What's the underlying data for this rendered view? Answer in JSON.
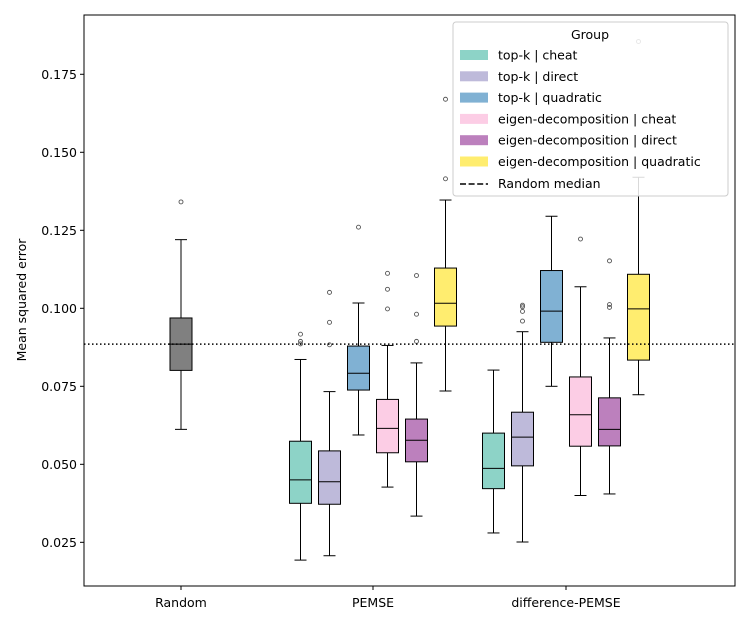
{
  "chart_data": {
    "type": "boxplot",
    "ylabel": "Mean squared error",
    "xlabel": "",
    "ylim": [
      0.011,
      0.194
    ],
    "yticks": [
      0.025,
      0.05,
      0.075,
      0.1,
      0.125,
      0.15,
      0.175
    ],
    "ytick_labels": [
      "0.025",
      "0.050",
      "0.075",
      "0.100",
      "0.125",
      "0.150",
      "0.175"
    ],
    "categories": [
      "Random",
      "PEMSE",
      "difference-PEMSE"
    ],
    "random_median": 0.0885,
    "random_median_label": "Random median",
    "legend_title": "Group",
    "legend_position": "top-right",
    "groups": [
      {
        "name": "top-k | cheat",
        "color": "#8dd3c7"
      },
      {
        "name": "top-k | direct",
        "color": "#bebada"
      },
      {
        "name": "top-k | quadratic",
        "color": "#80b1d3"
      },
      {
        "name": "eigen-decomposition | cheat",
        "color": "#fccde5"
      },
      {
        "name": "eigen-decomposition | direct",
        "color": "#bc80bd"
      },
      {
        "name": "eigen-decomposition | quadratic",
        "color": "#ffed6f"
      }
    ],
    "boxes": [
      {
        "category": "Random",
        "group": "Random",
        "color": "#808080",
        "whislo": 0.0612,
        "q1": 0.0801,
        "med": 0.0885,
        "q3": 0.0969,
        "whishi": 0.122,
        "fliers": [
          0.1341
        ]
      },
      {
        "category": "PEMSE",
        "group": "top-k | cheat",
        "color": "#8dd3c7",
        "whislo": 0.0193,
        "q1": 0.0375,
        "med": 0.045,
        "q3": 0.0574,
        "whishi": 0.0836,
        "fliers": [
          0.0886,
          0.0894,
          0.0917
        ]
      },
      {
        "category": "PEMSE",
        "group": "top-k | direct",
        "color": "#bebada",
        "whislo": 0.0207,
        "q1": 0.0372,
        "med": 0.0444,
        "q3": 0.0543,
        "whishi": 0.0733,
        "fliers": [
          0.0883,
          0.0955,
          0.1051
        ]
      },
      {
        "category": "PEMSE",
        "group": "top-k | quadratic",
        "color": "#80b1d3",
        "whislo": 0.0594,
        "q1": 0.0738,
        "med": 0.0792,
        "q3": 0.0879,
        "whishi": 0.1017,
        "fliers": [
          0.126
        ]
      },
      {
        "category": "PEMSE",
        "group": "eigen-decomposition | cheat",
        "color": "#fccde5",
        "whislo": 0.0427,
        "q1": 0.0537,
        "med": 0.0615,
        "q3": 0.0708,
        "whishi": 0.0881,
        "fliers": [
          0.0998,
          0.1061,
          0.1112
        ]
      },
      {
        "category": "PEMSE",
        "group": "eigen-decomposition | direct",
        "color": "#bc80bd",
        "whislo": 0.0334,
        "q1": 0.0508,
        "med": 0.0577,
        "q3": 0.0645,
        "whishi": 0.0825,
        "fliers": [
          0.0894,
          0.0981,
          0.1105
        ]
      },
      {
        "category": "PEMSE",
        "group": "eigen-decomposition | quadratic",
        "color": "#ffed6f",
        "whislo": 0.0735,
        "q1": 0.0943,
        "med": 0.1016,
        "q3": 0.1129,
        "whishi": 0.1347,
        "fliers": [
          0.1415,
          0.167
        ]
      },
      {
        "category": "difference-PEMSE",
        "group": "top-k | cheat",
        "color": "#8dd3c7",
        "whislo": 0.028,
        "q1": 0.0422,
        "med": 0.0487,
        "q3": 0.06,
        "whishi": 0.0802,
        "fliers": []
      },
      {
        "category": "difference-PEMSE",
        "group": "top-k | direct",
        "color": "#bebada",
        "whislo": 0.0251,
        "q1": 0.0495,
        "med": 0.0587,
        "q3": 0.0667,
        "whishi": 0.0925,
        "fliers": [
          0.0959,
          0.099,
          0.1005,
          0.101
        ]
      },
      {
        "category": "difference-PEMSE",
        "group": "top-k | quadratic",
        "color": "#80b1d3",
        "whislo": 0.075,
        "q1": 0.0891,
        "med": 0.0991,
        "q3": 0.1121,
        "whishi": 0.1295,
        "fliers": []
      },
      {
        "category": "difference-PEMSE",
        "group": "eigen-decomposition | cheat",
        "color": "#fccde5",
        "whislo": 0.04,
        "q1": 0.0558,
        "med": 0.0659,
        "q3": 0.078,
        "whishi": 0.1069,
        "fliers": [
          0.1222
        ]
      },
      {
        "category": "difference-PEMSE",
        "group": "eigen-decomposition | direct",
        "color": "#bc80bd",
        "whislo": 0.0405,
        "q1": 0.0559,
        "med": 0.0612,
        "q3": 0.0713,
        "whishi": 0.0905,
        "fliers": [
          0.1003,
          0.1012,
          0.1152
        ]
      },
      {
        "category": "difference-PEMSE",
        "group": "eigen-decomposition | quadratic",
        "color": "#ffed6f",
        "whislo": 0.0723,
        "q1": 0.0834,
        "med": 0.0998,
        "q3": 0.1109,
        "whishi": 0.142,
        "fliers": [
          0.1855
        ]
      }
    ]
  }
}
